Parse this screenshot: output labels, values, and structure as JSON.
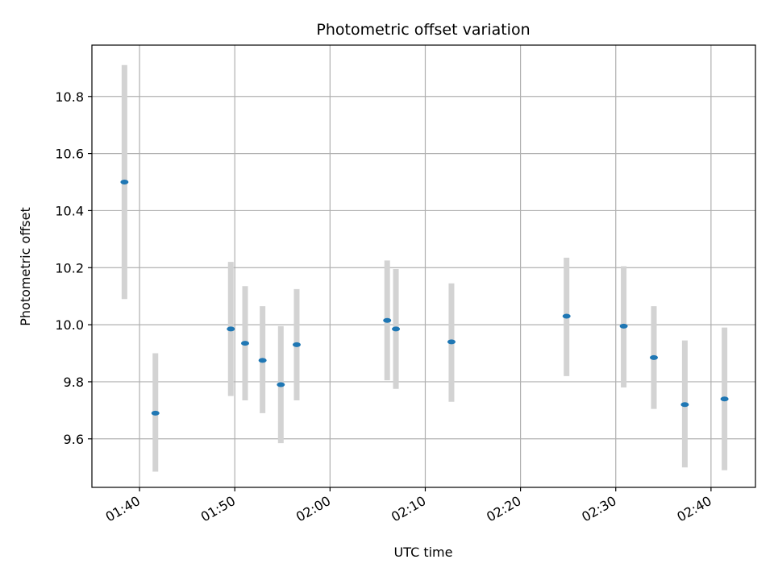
{
  "chart_data": {
    "type": "scatter",
    "title": "Photometric offset variation",
    "xlabel": "UTC time",
    "ylabel": "Photometric offset",
    "x_ticks": [
      "01:40",
      "01:50",
      "02:00",
      "02:10",
      "02:20",
      "02:30",
      "02:40"
    ],
    "xlim": [
      "01:35:00",
      "02:44:40"
    ],
    "y_ticks": [
      "9.6",
      "9.8",
      "10.0",
      "10.2",
      "10.4",
      "10.6",
      "10.8"
    ],
    "ylim": [
      9.43,
      10.98
    ],
    "grid": true,
    "colors": {
      "point": "#1f77b4",
      "errorbar": "#d3d3d3",
      "grid": "#b0b0b0"
    },
    "points": [
      {
        "x": "01:38:25",
        "y": 10.5,
        "ylow": 10.09,
        "yhigh": 10.91
      },
      {
        "x": "01:41:40",
        "y": 9.69,
        "ylow": 9.485,
        "yhigh": 9.9
      },
      {
        "x": "01:49:35",
        "y": 9.985,
        "ylow": 9.75,
        "yhigh": 10.22
      },
      {
        "x": "01:51:05",
        "y": 9.935,
        "ylow": 9.735,
        "yhigh": 10.135
      },
      {
        "x": "01:52:55",
        "y": 9.875,
        "ylow": 9.69,
        "yhigh": 10.065
      },
      {
        "x": "01:54:50",
        "y": 9.79,
        "ylow": 9.585,
        "yhigh": 9.995
      },
      {
        "x": "01:56:30",
        "y": 9.93,
        "ylow": 9.735,
        "yhigh": 10.125
      },
      {
        "x": "02:06:00",
        "y": 10.015,
        "ylow": 9.805,
        "yhigh": 10.225
      },
      {
        "x": "02:06:55",
        "y": 9.985,
        "ylow": 9.775,
        "yhigh": 10.195
      },
      {
        "x": "02:12:45",
        "y": 9.94,
        "ylow": 9.73,
        "yhigh": 10.145
      },
      {
        "x": "02:24:50",
        "y": 10.03,
        "ylow": 9.82,
        "yhigh": 10.235
      },
      {
        "x": "02:30:50",
        "y": 9.995,
        "ylow": 9.78,
        "yhigh": 10.205
      },
      {
        "x": "02:34:00",
        "y": 9.885,
        "ylow": 9.705,
        "yhigh": 10.065
      },
      {
        "x": "02:37:15",
        "y": 9.72,
        "ylow": 9.5,
        "yhigh": 9.945
      },
      {
        "x": "02:41:25",
        "y": 9.74,
        "ylow": 9.49,
        "yhigh": 9.99
      }
    ]
  }
}
